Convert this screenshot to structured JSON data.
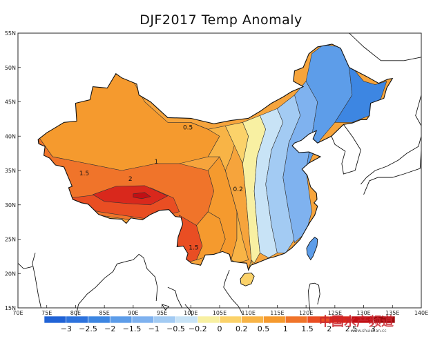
{
  "title": "DJF2017 Temp Anomaly",
  "lon_ticks": [
    "70E",
    "75E",
    "80E",
    "85E",
    "90E",
    "95E",
    "100E",
    "105E",
    "110E",
    "115E",
    "120E",
    "125E",
    "130E",
    "135E",
    "140E"
  ],
  "lat_ticks": [
    "15N",
    "20N",
    "25N",
    "30N",
    "35N",
    "40N",
    "45N",
    "50N",
    "55N"
  ],
  "contour_labels": [
    {
      "text": "0.5",
      "lon": 99.5,
      "lat": 41.0
    },
    {
      "text": "1",
      "lon": 94.0,
      "lat": 36.0
    },
    {
      "text": "1.5",
      "lon": 81.5,
      "lat": 34.3
    },
    {
      "text": "2",
      "lon": 89.5,
      "lat": 33.5
    },
    {
      "text": "0.2",
      "lon": 108.2,
      "lat": 32.0
    },
    {
      "text": "1.5",
      "lon": 100.5,
      "lat": 23.5
    }
  ],
  "colorbar": {
    "labels": [
      "-3",
      "-2.5",
      "-2",
      "-1.5",
      "-1",
      "-0.5",
      "-0.2",
      "0",
      "0.2",
      "0.5",
      "1",
      "1.5",
      "2",
      "2.5",
      "3"
    ],
    "colors": [
      "#2163d6",
      "#2e73dd",
      "#3d86e2",
      "#5d9de9",
      "#7fb2ef",
      "#a3cbf3",
      "#c8e3f6",
      "#f8f0a2",
      "#fbd26a",
      "#f8b446",
      "#f59a2e",
      "#f0742a",
      "#e94e23",
      "#d9281c",
      "#c20f14",
      "#9c0a0c"
    ]
  },
  "chart_data": {
    "type": "heatmap",
    "title": "DJF2017 Temp Anomaly",
    "xlabel": "",
    "ylabel": "",
    "xlim": [
      70,
      140
    ],
    "ylim": [
      15,
      55
    ],
    "units_note": "",
    "contour_levels": [
      -3,
      -2.5,
      -2,
      -1.5,
      -1,
      -0.5,
      -0.2,
      0,
      0.2,
      0.5,
      1,
      1.5,
      2,
      2.5,
      3
    ],
    "regions": [
      {
        "name": "",
        "value": 0.75,
        "polygon": [
          [
            75,
            44
          ],
          [
            76,
            46.5
          ],
          [
            79,
            47.5
          ],
          [
            83,
            49
          ],
          [
            85,
            48
          ],
          [
            87.5,
            49.2
          ],
          [
            90,
            48
          ],
          [
            92,
            45
          ],
          [
            96,
            42
          ],
          [
            100,
            42
          ],
          [
            103,
            41
          ],
          [
            105,
            40
          ],
          [
            103,
            37
          ],
          [
            98,
            36
          ],
          [
            94,
            36
          ],
          [
            88,
            35
          ],
          [
            82,
            36
          ],
          [
            76,
            37
          ],
          [
            73.5,
            40
          ],
          [
            73.5,
            42
          ]
        ]
      },
      {
        "name": "",
        "value": 1.2,
        "polygon": [
          [
            73.5,
            40
          ],
          [
            76,
            37
          ],
          [
            82,
            36
          ],
          [
            88,
            35
          ],
          [
            94,
            36
          ],
          [
            98,
            36
          ],
          [
            103,
            35
          ],
          [
            104,
            32
          ],
          [
            103,
            29
          ],
          [
            101,
            27
          ],
          [
            98,
            28
          ],
          [
            92,
            27.5
          ],
          [
            88,
            28
          ],
          [
            84,
            28.5
          ],
          [
            80,
            30
          ],
          [
            78,
            31.5
          ],
          [
            78,
            34
          ],
          [
            76,
            35
          ],
          [
            74,
            37
          ]
        ]
      },
      {
        "name": "",
        "value": 1.7,
        "polygon": [
          [
            79,
            31
          ],
          [
            84,
            31.5
          ],
          [
            88,
            32
          ],
          [
            93,
            32.5
          ],
          [
            97,
            31
          ],
          [
            98,
            29
          ],
          [
            95,
            28.3
          ],
          [
            92,
            28
          ],
          [
            88,
            28.5
          ],
          [
            84,
            29
          ],
          [
            80,
            30
          ]
        ]
      },
      {
        "name": "",
        "value": 2.2,
        "polygon": [
          [
            83,
            31.5
          ],
          [
            87,
            32.7
          ],
          [
            92,
            32.8
          ],
          [
            96,
            31.3
          ],
          [
            93,
            30
          ],
          [
            89,
            30.2
          ],
          [
            85,
            30.5
          ]
        ]
      },
      {
        "name": "",
        "value": 2.7,
        "polygon": [
          [
            90,
            31.6
          ],
          [
            92,
            31.8
          ],
          [
            93,
            31.2
          ],
          [
            91.5,
            30.9
          ],
          [
            90,
            31.1
          ]
        ]
      },
      {
        "name": "",
        "value": 1.6,
        "polygon": [
          [
            98,
            28.5
          ],
          [
            101,
            27
          ],
          [
            102,
            24
          ],
          [
            101,
            22
          ],
          [
            99,
            21.5
          ],
          [
            98,
            23
          ],
          [
            97.5,
            25
          ],
          [
            98,
            27
          ]
        ]
      },
      {
        "name": "",
        "value": 1.0,
        "polygon": [
          [
            101,
            27
          ],
          [
            103,
            29
          ],
          [
            105,
            28
          ],
          [
            106,
            25
          ],
          [
            105,
            23
          ],
          [
            103,
            22.5
          ],
          [
            101,
            22
          ],
          [
            102,
            24
          ]
        ]
      },
      {
        "name": "",
        "value": 0.7,
        "polygon": [
          [
            103,
            35
          ],
          [
            105,
            37
          ],
          [
            106,
            35
          ],
          [
            107,
            32
          ],
          [
            108,
            29
          ],
          [
            108,
            25
          ],
          [
            107,
            22
          ],
          [
            105,
            22.5
          ],
          [
            105,
            23
          ],
          [
            106,
            25
          ],
          [
            105,
            28
          ],
          [
            103,
            29
          ],
          [
            104,
            32
          ]
        ]
      },
      {
        "name": "",
        "value": 0.35,
        "polygon": [
          [
            100,
            42
          ],
          [
            103,
            41
          ],
          [
            106,
            41.5
          ],
          [
            108,
            40
          ],
          [
            107,
            37
          ],
          [
            106,
            35
          ],
          [
            107,
            32
          ],
          [
            108,
            29
          ],
          [
            109,
            25
          ],
          [
            110,
            22
          ],
          [
            108,
            21.5
          ],
          [
            107,
            22
          ],
          [
            108,
            25
          ],
          [
            108,
            29
          ],
          [
            107,
            32
          ],
          [
            106,
            35
          ],
          [
            105,
            37
          ],
          [
            103,
            37
          ],
          [
            105,
            40
          ],
          [
            103,
            41
          ]
        ]
      },
      {
        "name": "",
        "value": 0.1,
        "polygon": [
          [
            106,
            41.5
          ],
          [
            109,
            42
          ],
          [
            110,
            40
          ],
          [
            109,
            36
          ],
          [
            109.5,
            32
          ],
          [
            110,
            27
          ],
          [
            110.5,
            22
          ],
          [
            110,
            20.5
          ],
          [
            108.6,
            18.2
          ],
          [
            109.3,
            18.3
          ],
          [
            110.5,
            18.7
          ],
          [
            111,
            20
          ],
          [
            110.5,
            22
          ],
          [
            110,
            27
          ],
          [
            109.5,
            32
          ],
          [
            109,
            36
          ]
        ]
      },
      {
        "name": "",
        "value": -0.1,
        "polygon": [
          [
            109,
            42
          ],
          [
            112,
            43
          ],
          [
            113,
            41
          ],
          [
            111.5,
            37
          ],
          [
            111,
            32
          ],
          [
            111.5,
            27
          ],
          [
            112,
            23
          ],
          [
            111,
            21.5
          ],
          [
            110.5,
            22
          ],
          [
            110,
            27
          ],
          [
            109.5,
            32
          ],
          [
            109,
            36
          ],
          [
            110,
            40
          ]
        ]
      },
      {
        "name": "",
        "value": -0.35,
        "polygon": [
          [
            112,
            43
          ],
          [
            115,
            44
          ],
          [
            116,
            42
          ],
          [
            114,
            38
          ],
          [
            113,
            33
          ],
          [
            114,
            27
          ],
          [
            115,
            23
          ],
          [
            113.5,
            22.3
          ],
          [
            112,
            23
          ],
          [
            111.5,
            27
          ],
          [
            111,
            32
          ],
          [
            111.5,
            37
          ],
          [
            113,
            41
          ]
        ]
      },
      {
        "name": "",
        "value": -0.75,
        "polygon": [
          [
            115,
            44
          ],
          [
            118,
            46
          ],
          [
            119,
            43
          ],
          [
            117,
            39
          ],
          [
            116,
            34
          ],
          [
            117,
            29
          ],
          [
            118,
            25
          ],
          [
            116.5,
            23
          ],
          [
            115,
            23
          ],
          [
            114,
            27
          ],
          [
            113,
            33
          ],
          [
            114,
            38
          ],
          [
            116,
            42
          ]
        ]
      },
      {
        "name": "",
        "value": -1.25,
        "polygon": [
          [
            118,
            46
          ],
          [
            120,
            48
          ],
          [
            122,
            45
          ],
          [
            121,
            40
          ],
          [
            120,
            35
          ],
          [
            121,
            29
          ],
          [
            120,
            26
          ],
          [
            118,
            24.5
          ],
          [
            117,
            29
          ],
          [
            116,
            34
          ],
          [
            117,
            39
          ],
          [
            119,
            43
          ]
        ]
      },
      {
        "name": "",
        "value": -1.75,
        "polygon": [
          [
            120,
            48
          ],
          [
            121,
            52
          ],
          [
            123,
            53.3
          ],
          [
            126,
            53
          ],
          [
            127.5,
            50
          ],
          [
            128,
            46
          ],
          [
            125,
            42
          ],
          [
            122.5,
            39.5
          ],
          [
            121,
            37
          ],
          [
            120,
            35
          ],
          [
            121,
            40
          ],
          [
            122,
            45
          ]
        ]
      },
      {
        "name": "",
        "value": -2.25,
        "polygon": [
          [
            126,
            53
          ],
          [
            128,
            50
          ],
          [
            130,
            48
          ],
          [
            132,
            47.5
          ],
          [
            134,
            48
          ],
          [
            133,
            45.5
          ],
          [
            131,
            43
          ],
          [
            128,
            42
          ],
          [
            125,
            42
          ],
          [
            128,
            46
          ],
          [
            127.5,
            50
          ]
        ]
      }
    ]
  },
  "watermark": "中国水产频道",
  "watermark_sub": "www.shuichan.cc"
}
